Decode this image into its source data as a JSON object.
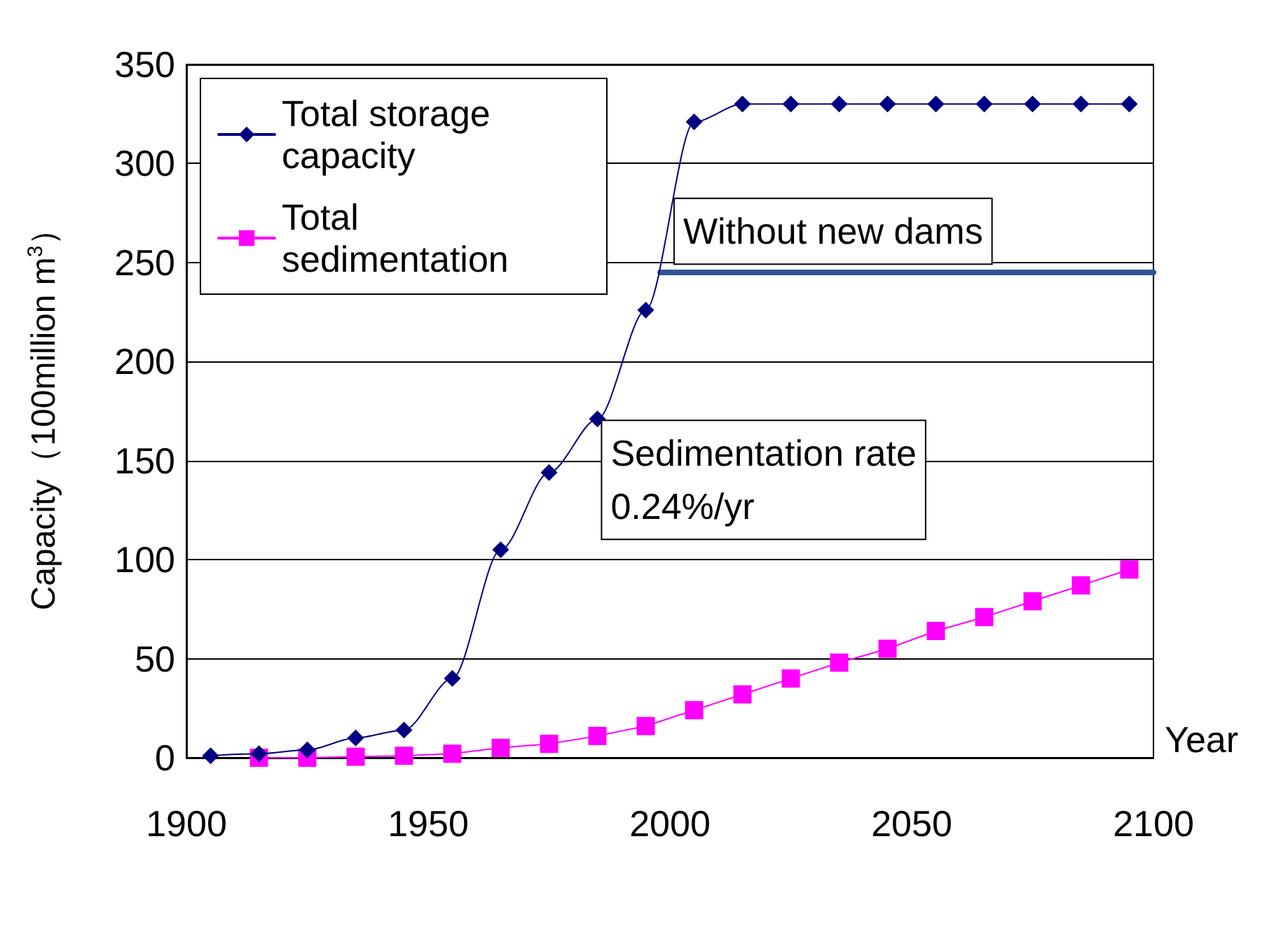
{
  "chart_data": {
    "type": "line",
    "xlabel": "Year",
    "ylabel": "Capacity（100million m$^{3}$）",
    "xlim": [
      1900,
      2100
    ],
    "xticks": [
      1900,
      1950,
      2000,
      2050,
      2100
    ],
    "ylim": [
      0,
      350
    ],
    "yticks": [
      0,
      50,
      100,
      150,
      200,
      250,
      300,
      350
    ],
    "grid": "y",
    "legend": "top left",
    "series": [
      {
        "name": "Total storage capacity",
        "color": "#000080",
        "marker": "diamond",
        "x": [
          1905,
          1915,
          1925,
          1935,
          1945,
          1955,
          1965,
          1975,
          1985,
          1995,
          2005,
          2015,
          2025,
          2035,
          2045,
          2055,
          2065,
          2075,
          2085,
          2095
        ],
        "values": [
          1,
          2,
          4,
          10,
          14,
          40,
          105,
          144,
          171,
          226,
          321,
          330,
          330,
          330,
          330,
          330,
          330,
          330,
          330,
          330
        ]
      },
      {
        "name": "Total sedimentation",
        "color": "#ff00ff",
        "marker": "square",
        "x": [
          1915,
          1925,
          1935,
          1945,
          1955,
          1965,
          1975,
          1985,
          1995,
          2005,
          2015,
          2025,
          2035,
          2045,
          2055,
          2065,
          2075,
          2085,
          2095
        ],
        "values": [
          0,
          0,
          0.5,
          1,
          2,
          5,
          7,
          11,
          16,
          24,
          32,
          40,
          48,
          55,
          64,
          71,
          79,
          87,
          95
        ]
      },
      {
        "color": "#2f5597",
        "marker": "none",
        "x": [
          1998,
          2100
        ],
        "values": [
          245,
          245
        ]
      }
    ],
    "annotations": [
      {
        "text": "Without new dams",
        "x": 2001,
        "y": 282
      },
      {
        "text": "Sedimentation rate\n0.24%/yr",
        "x": 1986,
        "y": 170
      }
    ]
  }
}
